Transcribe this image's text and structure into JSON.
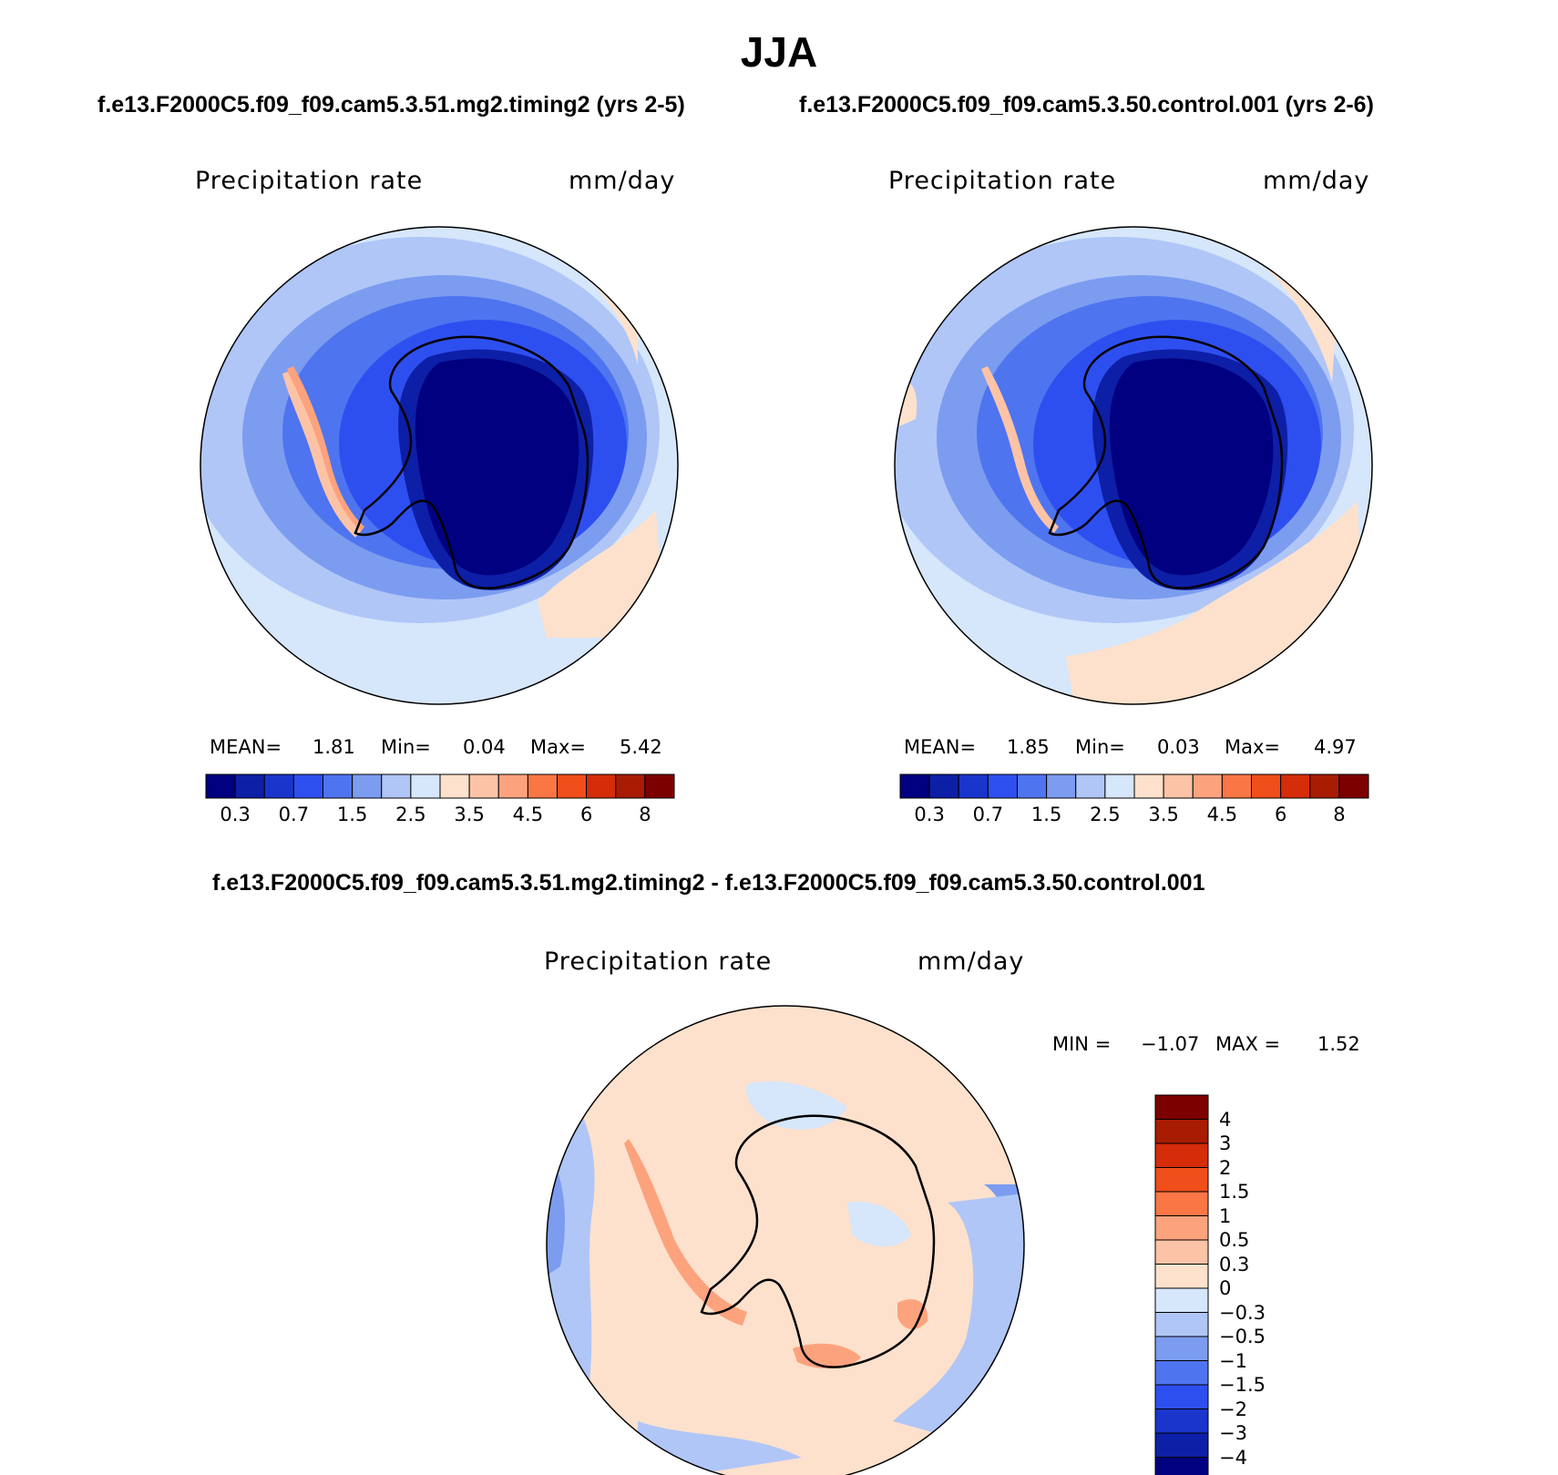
{
  "figure": {
    "title": "JJA",
    "case_a_title": "f.e13.F2000C5.f09_f09.cam5.3.51.mg2.timing2 (yrs 2-5)",
    "case_b_title": "f.e13.F2000C5.f09_f09.cam5.3.50.control.001 (yrs 2-6)",
    "diff_title": "f.e13.F2000C5.f09_f09.cam5.3.51.mg2.timing2 - f.e13.F2000C5.f09_f09.cam5.3.50.control.001"
  },
  "panels": [
    {
      "variable": "Precipitation rate",
      "units": "mm/day",
      "stats": {
        "mean_label": "MEAN=",
        "mean": "1.81",
        "min_label": "Min=",
        "min": "0.04",
        "max_label": "Max=",
        "max": "5.42"
      }
    },
    {
      "variable": "Precipitation rate",
      "units": "mm/day",
      "stats": {
        "mean_label": "MEAN=",
        "mean": "1.85",
        "min_label": "Min=",
        "min": "0.03",
        "max_label": "Max=",
        "max": "4.97"
      }
    },
    {
      "variable": "Precipitation rate",
      "units": "mm/day",
      "stats": {
        "min_label": "MIN =",
        "min": "−1.07",
        "max_label": "MAX =",
        "max": "1.52"
      }
    }
  ],
  "colorbars": {
    "horizontal": {
      "colors": [
        "#000080",
        "#0d1fa6",
        "#1a35cc",
        "#2e4ff0",
        "#4f74ef",
        "#7c9cf0",
        "#b0c6f7",
        "#d6e6fb",
        "#fde1cc",
        "#fdc3a6",
        "#fca37e",
        "#fb7645",
        "#f04e1a",
        "#d52c0a",
        "#a81c03",
        "#7d0000"
      ],
      "labels": [
        "0.3",
        "0.7",
        "1.5",
        "2.5",
        "3.5",
        "4.5",
        "6",
        "8"
      ]
    },
    "vertical": {
      "colors": [
        "#7d0000",
        "#a81c03",
        "#d52c0a",
        "#f04e1a",
        "#fb7645",
        "#fca37e",
        "#fdc3a6",
        "#fde1cc",
        "#d6e6fb",
        "#b0c6f7",
        "#7c9cf0",
        "#4f74ef",
        "#2e4ff0",
        "#1a35cc",
        "#0d1fa6",
        "#000080"
      ],
      "labels": [
        "4",
        "3",
        "2",
        "1.5",
        "1",
        "0.5",
        "0.3",
        "0",
        "−0.3",
        "−0.5",
        "−1",
        "−1.5",
        "−2",
        "−3",
        "−4"
      ]
    }
  },
  "map_colors": {
    "ocean_light": "#d6e6fb",
    "ocean_mid": "#b0c6f7",
    "mid_blue": "#7c9cf0",
    "blue": "#4f74ef",
    "strong_blue": "#2e4ff0",
    "deep_blue": "#1a35cc",
    "navy": "#000080",
    "peach": "#fde1cc",
    "salmon": "#fdc3a6",
    "orange": "#fca37e",
    "red_orange": "#fb7645"
  }
}
